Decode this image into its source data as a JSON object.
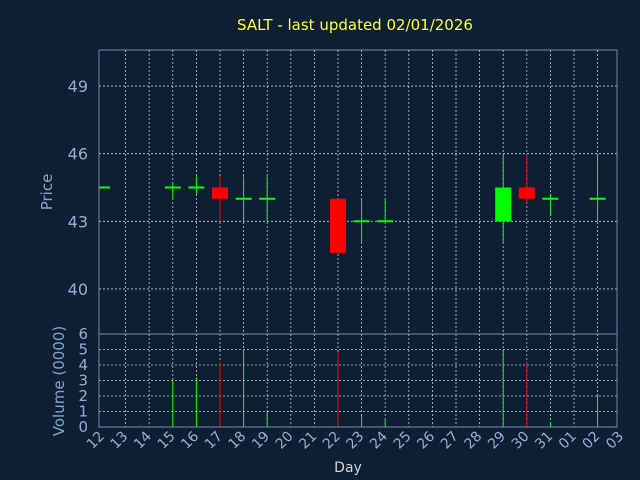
{
  "chart_data": {
    "type": "candlestick",
    "title": "SALT - last updated 02/01/2026",
    "xlabel": "Day",
    "price_panel": {
      "ylabel": "Price",
      "ylim": [
        38,
        50.6
      ],
      "yticks": [
        40,
        43,
        46,
        49
      ],
      "grid": true
    },
    "volume_panel": {
      "ylabel": "Volume (0000)",
      "ylim": [
        0,
        6
      ],
      "yticks": [
        0,
        1,
        2,
        3,
        4,
        5,
        6
      ],
      "grid": true
    },
    "x_tick_labels": [
      "12",
      "13",
      "14",
      "15",
      "16",
      "17",
      "18",
      "19",
      "20",
      "21",
      "22",
      "23",
      "24",
      "25",
      "26",
      "27",
      "28",
      "29",
      "30",
      "31",
      "01",
      "02",
      "03"
    ],
    "colors": {
      "up": "#00ff00",
      "down": "#ff0000",
      "flat": "#00ff00"
    },
    "candles": [
      {
        "day": "12",
        "open": 44.5,
        "high": 44.5,
        "low": 44.5,
        "close": 44.5,
        "volume": 0
      },
      {
        "day": "15",
        "open": 44.5,
        "high": 44.7,
        "low": 44.0,
        "close": 44.5,
        "volume": 3.0
      },
      {
        "day": "16",
        "open": 44.5,
        "high": 45.0,
        "low": 44.2,
        "close": 44.5,
        "volume": 3.2
      },
      {
        "day": "17",
        "open": 44.5,
        "high": 45.0,
        "low": 43.0,
        "close": 44.0,
        "volume": 4.2
      },
      {
        "day": "18",
        "open": 44.0,
        "high": 45.0,
        "low": 43.0,
        "close": 44.0,
        "volume": 5.0
      },
      {
        "day": "19",
        "open": 44.0,
        "high": 45.0,
        "low": 43.0,
        "close": 44.0,
        "volume": 1.0
      },
      {
        "day": "22",
        "open": 44.0,
        "high": 44.0,
        "low": 41.6,
        "close": 41.6,
        "volume": 4.8
      },
      {
        "day": "23",
        "open": 43.0,
        "high": 44.0,
        "low": 42.0,
        "close": 43.0,
        "volume": 0.7
      },
      {
        "day": "24",
        "open": 43.0,
        "high": 44.0,
        "low": 43.0,
        "close": 43.0,
        "volume": 0.5
      },
      {
        "day": "29",
        "open": 43.0,
        "high": 46.0,
        "low": 42.0,
        "close": 44.5,
        "volume": 5.0
      },
      {
        "day": "30",
        "open": 44.5,
        "high": 46.0,
        "low": 43.8,
        "close": 44.0,
        "volume": 4.2
      },
      {
        "day": "31",
        "open": 44.0,
        "high": 44.2,
        "low": 43.3,
        "close": 44.0,
        "volume": 0.3
      },
      {
        "day": "02",
        "open": 44.0,
        "high": 46.0,
        "low": 43.0,
        "close": 44.0,
        "volume": 2.1
      }
    ]
  }
}
